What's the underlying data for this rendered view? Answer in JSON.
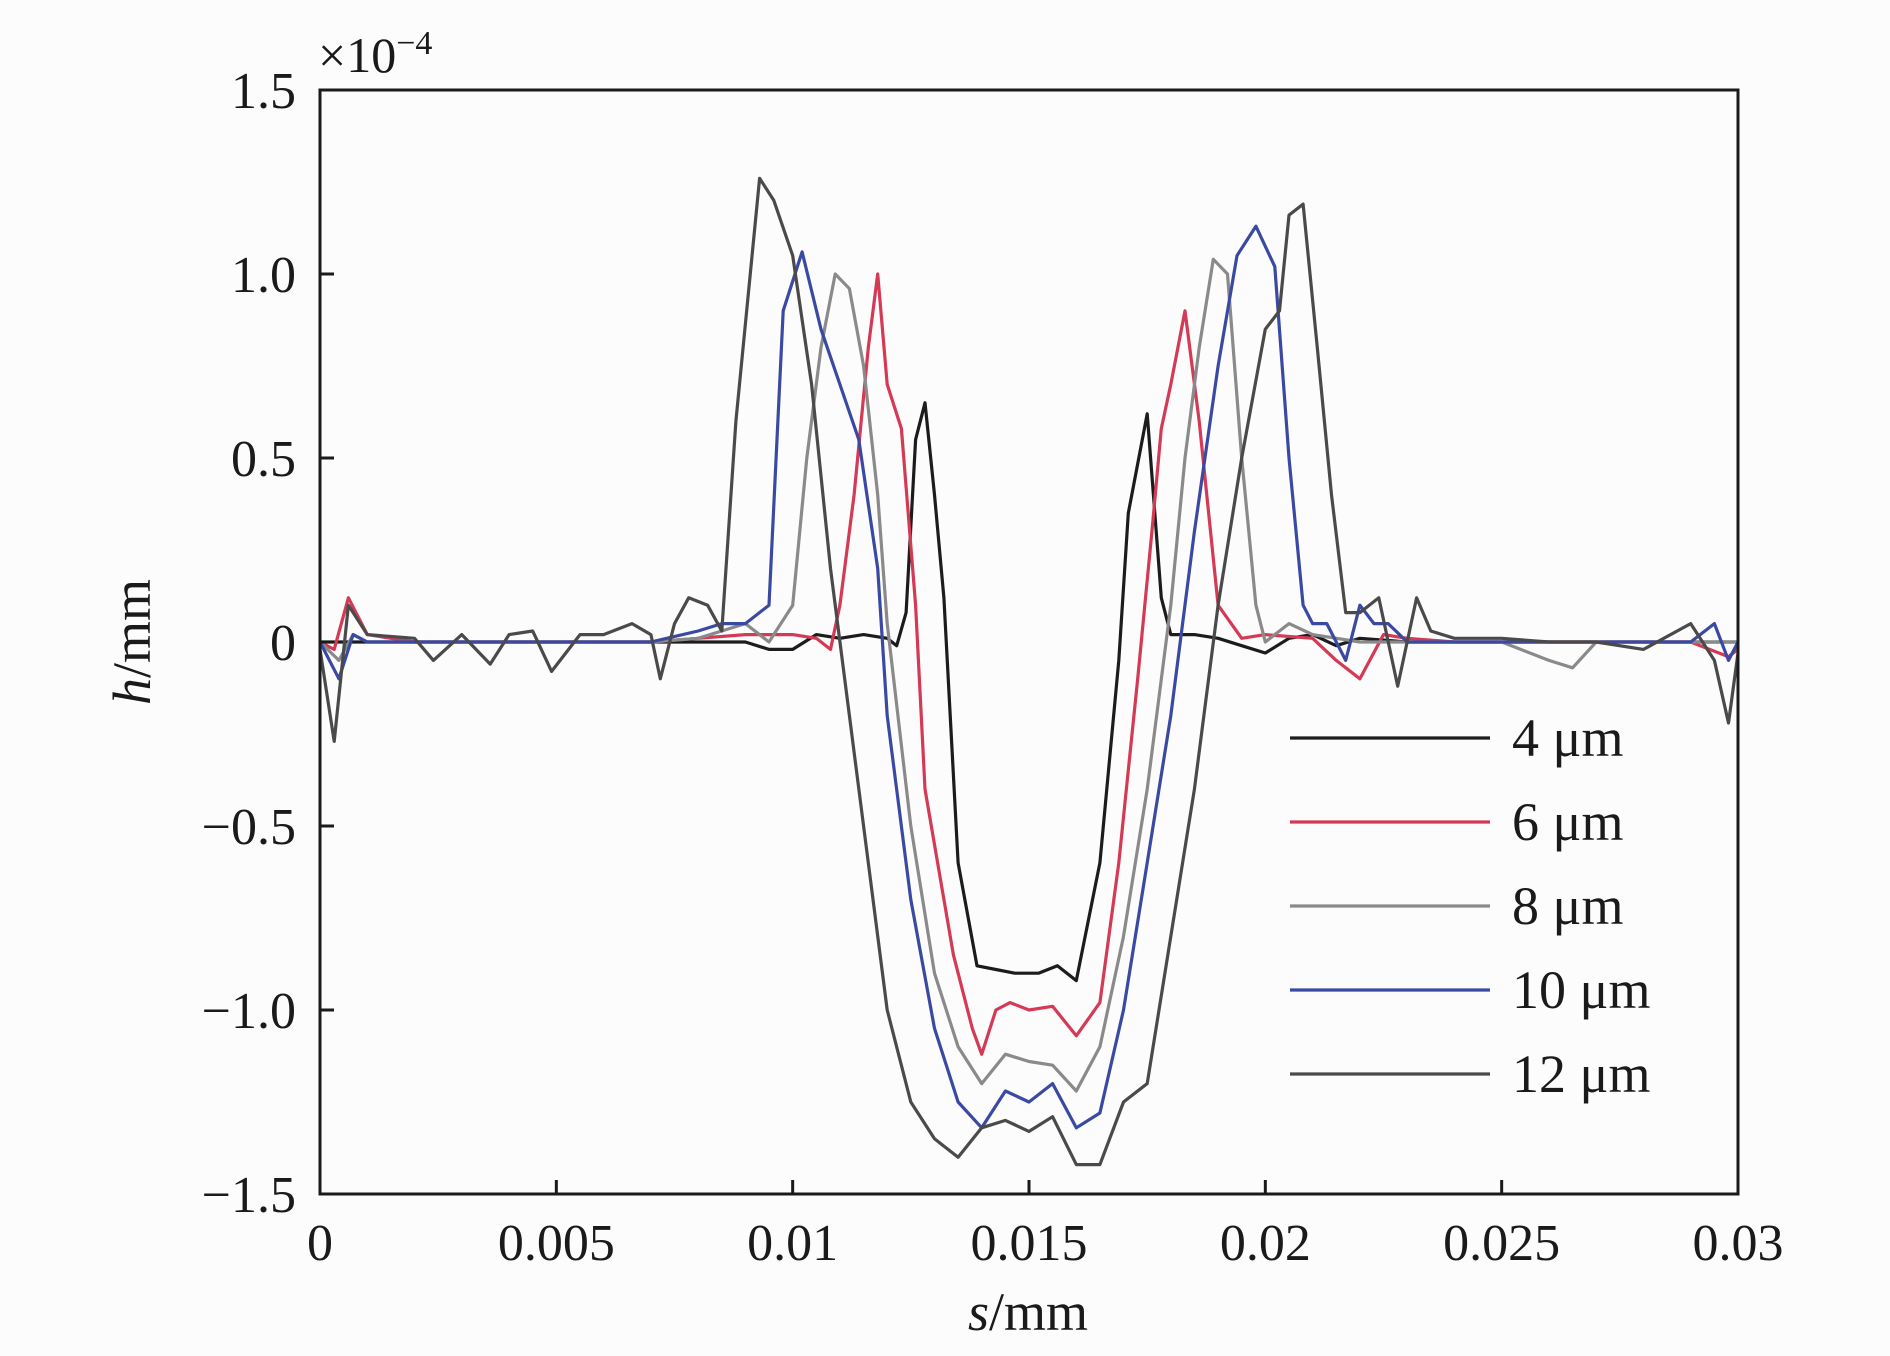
{
  "chart_data": {
    "type": "line",
    "xlabel_var": "s",
    "xlabel_unit": "/mm",
    "ylabel_var": "h",
    "ylabel_unit": "/mm",
    "y_scale_base": "×10",
    "y_scale_exp": "−4",
    "xlim": [
      0,
      0.03
    ],
    "ylim": [
      -1.5,
      1.5
    ],
    "x_ticks": [
      0,
      0.005,
      0.01,
      0.015,
      0.02,
      0.025,
      0.03
    ],
    "x_tick_labels": [
      "0",
      "0.005",
      "0.01",
      "0.015",
      "0.02",
      "0.025",
      "0.03"
    ],
    "y_ticks": [
      1.5,
      1.0,
      0.5,
      0,
      -0.5,
      -1.0,
      -1.5
    ],
    "y_tick_labels": [
      "1.5",
      "1.0",
      "0.5",
      "0",
      "−0.5",
      "−1.0",
      "−1.5"
    ],
    "grid": false,
    "legend_position": "lower-right",
    "series": [
      {
        "name": "4 μm",
        "color": "#1c1c1c",
        "points": [
          [
            0,
            0
          ],
          [
            0.001,
            0
          ],
          [
            0.002,
            0
          ],
          [
            0.003,
            0
          ],
          [
            0.004,
            0
          ],
          [
            0.005,
            0
          ],
          [
            0.006,
            0
          ],
          [
            0.007,
            0
          ],
          [
            0.008,
            0
          ],
          [
            0.009,
            0
          ],
          [
            0.0095,
            -0.02
          ],
          [
            0.01,
            -0.02
          ],
          [
            0.0105,
            0.02
          ],
          [
            0.011,
            0.01
          ],
          [
            0.0115,
            0.02
          ],
          [
            0.012,
            0.01
          ],
          [
            0.0122,
            -0.01
          ],
          [
            0.0124,
            0.08
          ],
          [
            0.0126,
            0.55
          ],
          [
            0.0128,
            0.65
          ],
          [
            0.013,
            0.4
          ],
          [
            0.0132,
            0.12
          ],
          [
            0.0135,
            -0.6
          ],
          [
            0.0139,
            -0.88
          ],
          [
            0.0143,
            -0.89
          ],
          [
            0.0147,
            -0.9
          ],
          [
            0.0152,
            -0.9
          ],
          [
            0.0156,
            -0.88
          ],
          [
            0.016,
            -0.92
          ],
          [
            0.0165,
            -0.6
          ],
          [
            0.0169,
            -0.05
          ],
          [
            0.0171,
            0.35
          ],
          [
            0.0175,
            0.62
          ],
          [
            0.0178,
            0.12
          ],
          [
            0.018,
            0.02
          ],
          [
            0.0185,
            0.02
          ],
          [
            0.019,
            0.01
          ],
          [
            0.0195,
            -0.01
          ],
          [
            0.02,
            -0.03
          ],
          [
            0.0205,
            0.01
          ],
          [
            0.021,
            0.02
          ],
          [
            0.0215,
            -0.01
          ],
          [
            0.022,
            0.01
          ],
          [
            0.023,
            0
          ],
          [
            0.024,
            0
          ],
          [
            0.025,
            0
          ],
          [
            0.026,
            0
          ],
          [
            0.027,
            0
          ],
          [
            0.028,
            0
          ],
          [
            0.029,
            0
          ],
          [
            0.03,
            0
          ]
        ]
      },
      {
        "name": "6 μm",
        "color": "#d43a55",
        "points": [
          [
            0,
            0
          ],
          [
            0.0003,
            -0.02
          ],
          [
            0.0006,
            0.12
          ],
          [
            0.001,
            0.02
          ],
          [
            0.002,
            0
          ],
          [
            0.003,
            0
          ],
          [
            0.004,
            0
          ],
          [
            0.005,
            0
          ],
          [
            0.006,
            0
          ],
          [
            0.007,
            0
          ],
          [
            0.008,
            0.01
          ],
          [
            0.009,
            0.02
          ],
          [
            0.01,
            0.02
          ],
          [
            0.0105,
            0.01
          ],
          [
            0.0108,
            -0.02
          ],
          [
            0.011,
            0.1
          ],
          [
            0.0113,
            0.4
          ],
          [
            0.0116,
            0.8
          ],
          [
            0.0118,
            1.0
          ],
          [
            0.012,
            0.7
          ],
          [
            0.0123,
            0.58
          ],
          [
            0.0126,
            0.1
          ],
          [
            0.0128,
            -0.4
          ],
          [
            0.0134,
            -0.85
          ],
          [
            0.0138,
            -1.05
          ],
          [
            0.014,
            -1.12
          ],
          [
            0.0143,
            -1.0
          ],
          [
            0.0146,
            -0.98
          ],
          [
            0.015,
            -1.0
          ],
          [
            0.0155,
            -0.99
          ],
          [
            0.016,
            -1.07
          ],
          [
            0.0165,
            -0.98
          ],
          [
            0.0169,
            -0.6
          ],
          [
            0.0173,
            -0.1
          ],
          [
            0.0176,
            0.3
          ],
          [
            0.0178,
            0.58
          ],
          [
            0.018,
            0.7
          ],
          [
            0.0183,
            0.9
          ],
          [
            0.0186,
            0.6
          ],
          [
            0.019,
            0.1
          ],
          [
            0.0195,
            0.01
          ],
          [
            0.02,
            0.02
          ],
          [
            0.021,
            0.01
          ],
          [
            0.0215,
            -0.05
          ],
          [
            0.022,
            -0.1
          ],
          [
            0.0225,
            0.02
          ],
          [
            0.023,
            0.01
          ],
          [
            0.024,
            0
          ],
          [
            0.025,
            0
          ],
          [
            0.026,
            0
          ],
          [
            0.027,
            0
          ],
          [
            0.028,
            0
          ],
          [
            0.029,
            0
          ],
          [
            0.0298,
            -0.04
          ],
          [
            0.03,
            -0.02
          ]
        ]
      },
      {
        "name": "8 μm",
        "color": "#8a8a8a",
        "points": [
          [
            0,
            0
          ],
          [
            0.0004,
            -0.05
          ],
          [
            0.0007,
            0.02
          ],
          [
            0.001,
            0
          ],
          [
            0.002,
            0
          ],
          [
            0.003,
            0
          ],
          [
            0.004,
            0
          ],
          [
            0.005,
            0
          ],
          [
            0.006,
            0
          ],
          [
            0.007,
            0
          ],
          [
            0.008,
            0.01
          ],
          [
            0.009,
            0.05
          ],
          [
            0.0095,
            0
          ],
          [
            0.01,
            0.1
          ],
          [
            0.0103,
            0.5
          ],
          [
            0.0106,
            0.8
          ],
          [
            0.0109,
            1.0
          ],
          [
            0.0112,
            0.96
          ],
          [
            0.0115,
            0.75
          ],
          [
            0.0118,
            0.4
          ],
          [
            0.012,
            0.05
          ],
          [
            0.0125,
            -0.5
          ],
          [
            0.013,
            -0.9
          ],
          [
            0.0135,
            -1.1
          ],
          [
            0.014,
            -1.2
          ],
          [
            0.0145,
            -1.12
          ],
          [
            0.015,
            -1.14
          ],
          [
            0.0155,
            -1.15
          ],
          [
            0.016,
            -1.22
          ],
          [
            0.0165,
            -1.1
          ],
          [
            0.017,
            -0.8
          ],
          [
            0.0175,
            -0.4
          ],
          [
            0.018,
            0.1
          ],
          [
            0.0183,
            0.5
          ],
          [
            0.0186,
            0.8
          ],
          [
            0.0189,
            1.04
          ],
          [
            0.0192,
            1.0
          ],
          [
            0.0195,
            0.5
          ],
          [
            0.0198,
            0.1
          ],
          [
            0.02,
            0
          ],
          [
            0.0205,
            0.05
          ],
          [
            0.021,
            0.02
          ],
          [
            0.022,
            0
          ],
          [
            0.023,
            0
          ],
          [
            0.024,
            0
          ],
          [
            0.025,
            0
          ],
          [
            0.026,
            -0.05
          ],
          [
            0.0265,
            -0.07
          ],
          [
            0.027,
            0
          ],
          [
            0.028,
            0
          ],
          [
            0.029,
            0
          ],
          [
            0.03,
            0
          ]
        ]
      },
      {
        "name": "10 μm",
        "color": "#3a4aa2",
        "points": [
          [
            0,
            0
          ],
          [
            0.0004,
            -0.1
          ],
          [
            0.0007,
            0.02
          ],
          [
            0.001,
            0
          ],
          [
            0.002,
            0
          ],
          [
            0.003,
            0
          ],
          [
            0.004,
            0
          ],
          [
            0.005,
            0
          ],
          [
            0.006,
            0
          ],
          [
            0.007,
            0
          ],
          [
            0.008,
            0.03
          ],
          [
            0.0085,
            0.05
          ],
          [
            0.009,
            0.05
          ],
          [
            0.0095,
            0.1
          ],
          [
            0.0098,
            0.9
          ],
          [
            0.0102,
            1.06
          ],
          [
            0.0106,
            0.85
          ],
          [
            0.011,
            0.7
          ],
          [
            0.0114,
            0.55
          ],
          [
            0.0118,
            0.2
          ],
          [
            0.012,
            -0.2
          ],
          [
            0.0125,
            -0.7
          ],
          [
            0.013,
            -1.05
          ],
          [
            0.0135,
            -1.25
          ],
          [
            0.014,
            -1.32
          ],
          [
            0.0145,
            -1.22
          ],
          [
            0.015,
            -1.25
          ],
          [
            0.0155,
            -1.2
          ],
          [
            0.016,
            -1.32
          ],
          [
            0.0165,
            -1.28
          ],
          [
            0.017,
            -1.0
          ],
          [
            0.0175,
            -0.6
          ],
          [
            0.018,
            -0.2
          ],
          [
            0.0185,
            0.3
          ],
          [
            0.019,
            0.75
          ],
          [
            0.0194,
            1.05
          ],
          [
            0.0198,
            1.13
          ],
          [
            0.0202,
            1.02
          ],
          [
            0.0205,
            0.5
          ],
          [
            0.0208,
            0.1
          ],
          [
            0.021,
            0.05
          ],
          [
            0.0213,
            0.05
          ],
          [
            0.0217,
            -0.05
          ],
          [
            0.022,
            0.1
          ],
          [
            0.0223,
            0.05
          ],
          [
            0.0226,
            0.05
          ],
          [
            0.023,
            0
          ],
          [
            0.024,
            0
          ],
          [
            0.025,
            0
          ],
          [
            0.026,
            0
          ],
          [
            0.027,
            0
          ],
          [
            0.028,
            0
          ],
          [
            0.029,
            0
          ],
          [
            0.0295,
            0.05
          ],
          [
            0.0298,
            -0.05
          ],
          [
            0.03,
            0
          ]
        ]
      },
      {
        "name": "12 μm",
        "color": "#4a4a4a",
        "points": [
          [
            0,
            -0.02
          ],
          [
            0.0003,
            -0.27
          ],
          [
            0.0006,
            0.1
          ],
          [
            0.001,
            0.02
          ],
          [
            0.002,
            0.01
          ],
          [
            0.0024,
            -0.05
          ],
          [
            0.003,
            0.02
          ],
          [
            0.0036,
            -0.06
          ],
          [
            0.004,
            0.02
          ],
          [
            0.0045,
            0.03
          ],
          [
            0.0049,
            -0.08
          ],
          [
            0.0055,
            0.02
          ],
          [
            0.006,
            0.02
          ],
          [
            0.0066,
            0.05
          ],
          [
            0.007,
            0.02
          ],
          [
            0.0072,
            -0.1
          ],
          [
            0.0075,
            0.05
          ],
          [
            0.0078,
            0.12
          ],
          [
            0.0082,
            0.1
          ],
          [
            0.0085,
            0.03
          ],
          [
            0.0088,
            0.6
          ],
          [
            0.0093,
            1.26
          ],
          [
            0.0096,
            1.2
          ],
          [
            0.01,
            1.05
          ],
          [
            0.0104,
            0.7
          ],
          [
            0.0108,
            0.2
          ],
          [
            0.0112,
            -0.2
          ],
          [
            0.0116,
            -0.6
          ],
          [
            0.012,
            -1.0
          ],
          [
            0.0125,
            -1.25
          ],
          [
            0.013,
            -1.35
          ],
          [
            0.0135,
            -1.4
          ],
          [
            0.014,
            -1.32
          ],
          [
            0.0145,
            -1.3
          ],
          [
            0.015,
            -1.33
          ],
          [
            0.0155,
            -1.29
          ],
          [
            0.016,
            -1.42
          ],
          [
            0.0165,
            -1.42
          ],
          [
            0.017,
            -1.25
          ],
          [
            0.0175,
            -1.2
          ],
          [
            0.018,
            -0.8
          ],
          [
            0.0185,
            -0.4
          ],
          [
            0.019,
            0.1
          ],
          [
            0.0195,
            0.5
          ],
          [
            0.02,
            0.85
          ],
          [
            0.0203,
            0.9
          ],
          [
            0.0205,
            1.16
          ],
          [
            0.0208,
            1.19
          ],
          [
            0.0211,
            0.8
          ],
          [
            0.0214,
            0.4
          ],
          [
            0.0217,
            0.08
          ],
          [
            0.022,
            0.08
          ],
          [
            0.0224,
            0.12
          ],
          [
            0.0228,
            -0.12
          ],
          [
            0.0232,
            0.12
          ],
          [
            0.0235,
            0.03
          ],
          [
            0.024,
            0.01
          ],
          [
            0.025,
            0.01
          ],
          [
            0.026,
            0
          ],
          [
            0.027,
            0
          ],
          [
            0.028,
            -0.02
          ],
          [
            0.029,
            0.05
          ],
          [
            0.0295,
            -0.05
          ],
          [
            0.0298,
            -0.22
          ],
          [
            0.03,
            -0.03
          ]
        ]
      }
    ]
  }
}
